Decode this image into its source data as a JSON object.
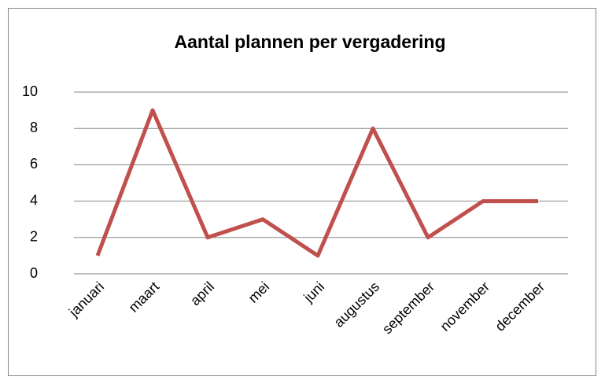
{
  "chart_data": {
    "type": "line",
    "title": "Aantal plannen per vergadering",
    "categories": [
      "januari",
      "maart",
      "april",
      "mei",
      "juni",
      "augustus",
      "september",
      "november",
      "december"
    ],
    "values": [
      1,
      9,
      2,
      3,
      1,
      8,
      2,
      4,
      4
    ],
    "color": "#c0504d",
    "ylim": [
      0,
      10
    ],
    "yticks": [
      0,
      2,
      4,
      6,
      8,
      10
    ],
    "grid": true
  }
}
